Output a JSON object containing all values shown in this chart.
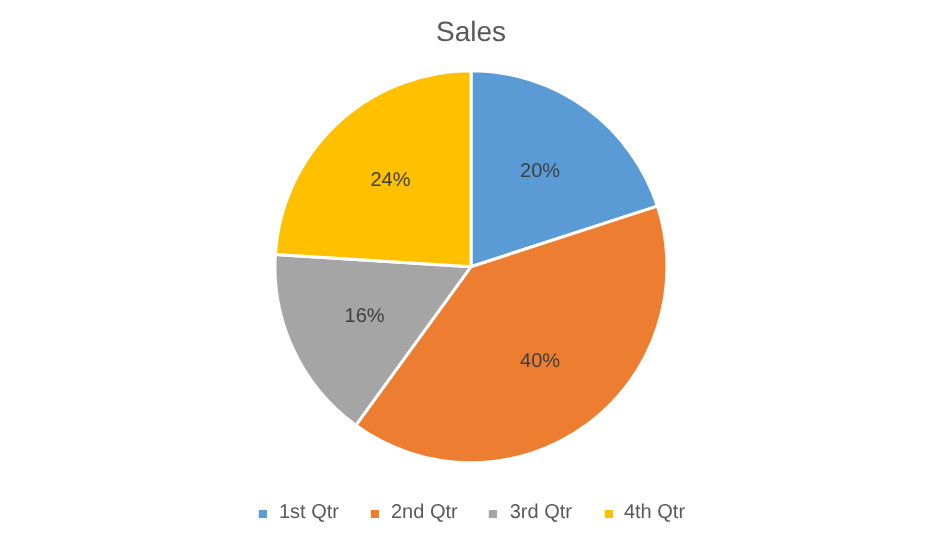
{
  "chart_data": {
    "type": "pie",
    "title": "Sales",
    "categories": [
      "1st Qtr",
      "2nd Qtr",
      "3rd Qtr",
      "4th Qtr"
    ],
    "values": [
      20,
      40,
      16,
      24
    ],
    "colors": [
      "#5b9bd5",
      "#ed7d31",
      "#a5a5a5",
      "#ffc000"
    ],
    "value_labels": [
      "20%",
      "40%",
      "16%",
      "24%"
    ],
    "legend": "bottom"
  }
}
